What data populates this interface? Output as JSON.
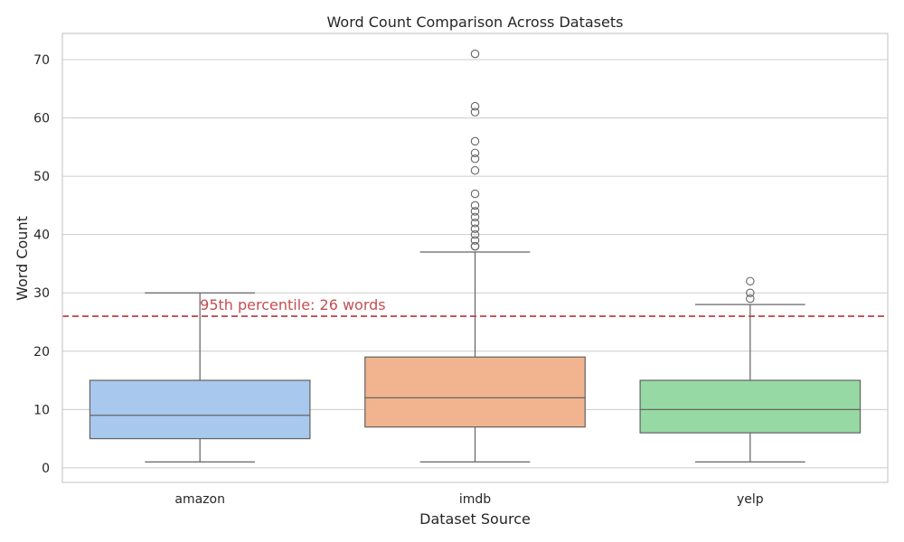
{
  "chart_data": {
    "type": "box",
    "title": "Word Count Comparison Across Datasets",
    "xlabel": "Dataset Source",
    "ylabel": "Word Count",
    "ylim": [
      -2.5,
      74.5
    ],
    "yticks": [
      0,
      10,
      20,
      30,
      40,
      50,
      60,
      70
    ],
    "grid": true,
    "categories": [
      "amazon",
      "imdb",
      "yelp"
    ],
    "boxes": [
      {
        "category": "amazon",
        "whisker_low": 1,
        "q1": 5,
        "median": 9,
        "q3": 15,
        "whisker_high": 30,
        "outliers": [],
        "color": "#a8c8ee"
      },
      {
        "category": "imdb",
        "whisker_low": 1,
        "q1": 7,
        "median": 12,
        "q3": 19,
        "whisker_high": 37,
        "outliers": [
          38,
          38,
          39,
          40,
          41,
          42,
          43,
          44,
          45,
          47,
          51,
          53,
          54,
          56,
          61,
          62,
          71
        ],
        "color": "#f1b48e"
      },
      {
        "category": "yelp",
        "whisker_low": 1,
        "q1": 6,
        "median": 10,
        "q3": 15,
        "whisker_high": 28,
        "outliers": [
          29,
          30,
          32
        ],
        "color": "#96d9a4"
      }
    ],
    "reference_line": {
      "value": 26,
      "label": "95th percentile: 26 words",
      "color": "#c44e52",
      "style": "dashed"
    }
  }
}
